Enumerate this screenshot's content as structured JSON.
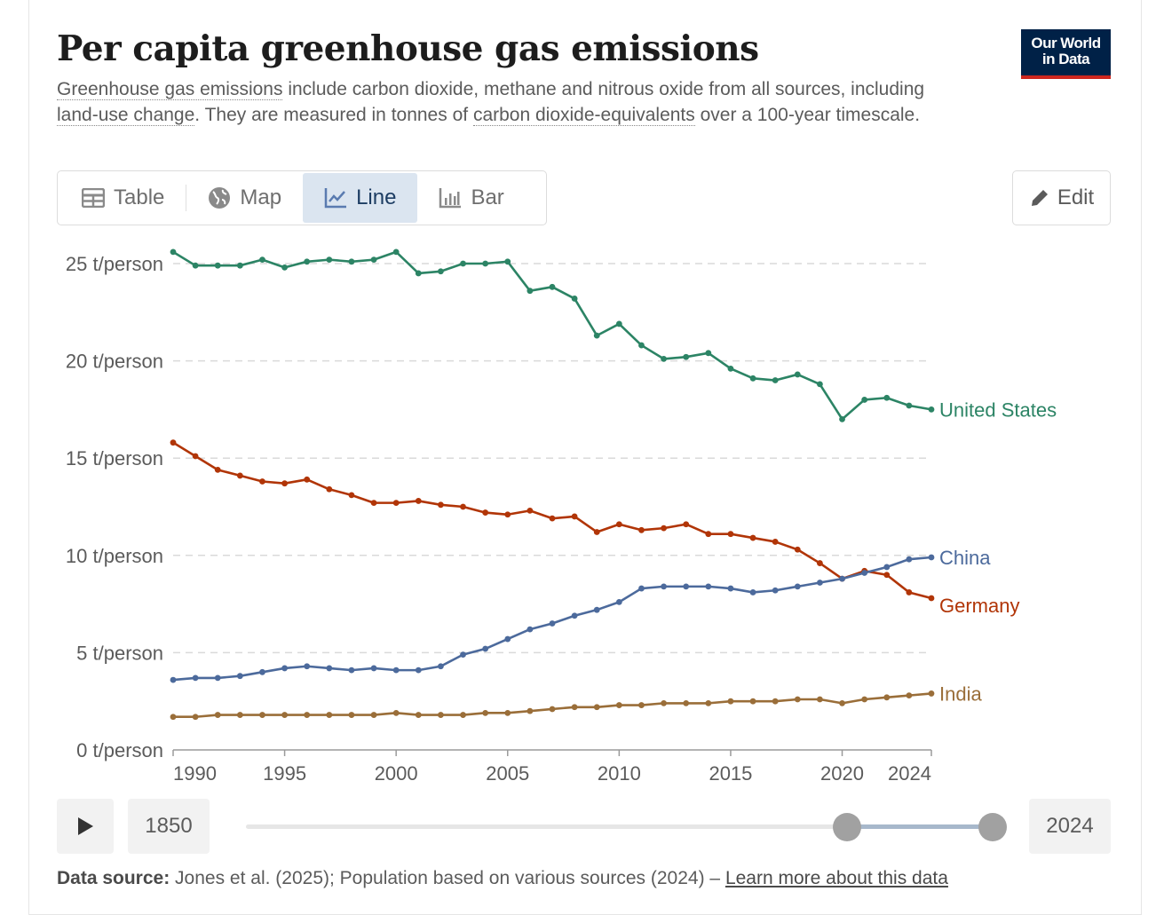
{
  "header": {
    "title": "Per capita greenhouse gas emissions",
    "subtitle_parts": [
      {
        "text": "Greenhouse gas emissions",
        "term": true
      },
      {
        "text": " include carbon dioxide, methane and nitrous oxide from all sources, including ",
        "term": false
      },
      {
        "text": "land-use change",
        "term": true
      },
      {
        "text": ". They are measured in tonnes of ",
        "term": false
      },
      {
        "text": "carbon dioxide-equivalents",
        "term": true
      },
      {
        "text": " over a 100-year timescale.",
        "term": false
      }
    ],
    "logo_line1": "Our World",
    "logo_line2": "in Data"
  },
  "tabs": [
    {
      "label": "Table",
      "icon": "table-icon",
      "active": false
    },
    {
      "label": "Map",
      "icon": "globe-icon",
      "active": false
    },
    {
      "label": "Line",
      "icon": "line-chart-icon",
      "active": true
    },
    {
      "label": "Bar",
      "icon": "bar-chart-icon",
      "active": false
    }
  ],
  "edit_label": "Edit",
  "timeline": {
    "start_label": "1850",
    "end_label": "2024",
    "range_start": 1990,
    "range_end": 2024,
    "min": 1850,
    "max": 2024
  },
  "source": {
    "prefix": "Data source:",
    "text": " Jones et al. (2025); Population based on various sources (2024) – ",
    "link": "Learn more about this data"
  },
  "chart_data": {
    "type": "line",
    "title": "Per capita greenhouse gas emissions",
    "xlabel": "",
    "ylabel": "",
    "unit_suffix": " t/person",
    "ylim": [
      0,
      25
    ],
    "xlim": [
      1990,
      2024
    ],
    "yticks": [
      0,
      5,
      10,
      15,
      20,
      25
    ],
    "ytick_labels": [
      "0 t/person",
      "5 t/person",
      "10 t/person",
      "15 t/person",
      "20 t/person",
      "25 t/person"
    ],
    "xticks": [
      1990,
      1995,
      2000,
      2005,
      2010,
      2015,
      2020,
      2024
    ],
    "grid": "horizontal-dashed",
    "legend": "inline-right",
    "x": [
      1990,
      1991,
      1992,
      1993,
      1994,
      1995,
      1996,
      1997,
      1998,
      1999,
      2000,
      2001,
      2002,
      2003,
      2004,
      2005,
      2006,
      2007,
      2008,
      2009,
      2010,
      2011,
      2012,
      2013,
      2014,
      2015,
      2016,
      2017,
      2018,
      2019,
      2020,
      2021,
      2022,
      2023,
      2024
    ],
    "series": [
      {
        "name": "United States",
        "color": "#2c8465",
        "values": [
          25.6,
          24.9,
          24.9,
          24.9,
          25.2,
          24.8,
          25.1,
          25.2,
          25.1,
          25.2,
          25.6,
          24.5,
          24.6,
          25.0,
          25.0,
          25.1,
          23.6,
          23.8,
          23.2,
          21.3,
          21.9,
          20.8,
          20.1,
          20.2,
          20.4,
          19.6,
          19.1,
          19.0,
          19.3,
          18.8,
          17.0,
          18.0,
          18.1,
          17.7,
          17.5
        ]
      },
      {
        "name": "Germany",
        "color": "#b13507",
        "values": [
          15.8,
          15.1,
          14.4,
          14.1,
          13.8,
          13.7,
          13.9,
          13.4,
          13.1,
          12.7,
          12.7,
          12.8,
          12.6,
          12.5,
          12.2,
          12.1,
          12.3,
          11.9,
          12.0,
          11.2,
          11.6,
          11.3,
          11.4,
          11.6,
          11.1,
          11.1,
          10.9,
          10.7,
          10.3,
          9.6,
          8.8,
          9.2,
          9.0,
          8.1,
          7.8
        ]
      },
      {
        "name": "China",
        "color": "#4c6a9c",
        "values": [
          3.6,
          3.7,
          3.7,
          3.8,
          4.0,
          4.2,
          4.3,
          4.2,
          4.1,
          4.2,
          4.1,
          4.1,
          4.3,
          4.9,
          5.2,
          5.7,
          6.2,
          6.5,
          6.9,
          7.2,
          7.6,
          8.3,
          8.4,
          8.4,
          8.4,
          8.3,
          8.1,
          8.2,
          8.4,
          8.6,
          8.8,
          9.1,
          9.4,
          9.8,
          9.9
        ]
      },
      {
        "name": "India",
        "color": "#9a6e39",
        "values": [
          1.7,
          1.7,
          1.8,
          1.8,
          1.8,
          1.8,
          1.8,
          1.8,
          1.8,
          1.8,
          1.9,
          1.8,
          1.8,
          1.8,
          1.9,
          1.9,
          2.0,
          2.1,
          2.2,
          2.2,
          2.3,
          2.3,
          2.4,
          2.4,
          2.4,
          2.5,
          2.5,
          2.5,
          2.6,
          2.6,
          2.4,
          2.6,
          2.7,
          2.8,
          2.9
        ]
      }
    ]
  }
}
